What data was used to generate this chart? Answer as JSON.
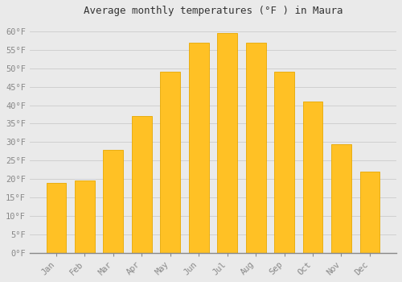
{
  "title": "Average monthly temperatures (°F ) in Maura",
  "months": [
    "Jan",
    "Feb",
    "Mar",
    "Apr",
    "May",
    "Jun",
    "Jul",
    "Aug",
    "Sep",
    "Oct",
    "Nov",
    "Dec"
  ],
  "values": [
    19,
    19.5,
    28,
    37,
    49,
    57,
    59.5,
    57,
    49,
    41,
    29.5,
    22
  ],
  "bar_color": "#FFC125",
  "bar_edge_color": "#E8A800",
  "background_color": "#EAEAEA",
  "plot_bg_color": "#EAEAEA",
  "grid_color": "#CCCCCC",
  "tick_color": "#888888",
  "title_color": "#333333",
  "ylim": [
    0,
    63
  ],
  "yticks": [
    0,
    5,
    10,
    15,
    20,
    25,
    30,
    35,
    40,
    45,
    50,
    55,
    60
  ],
  "ytick_labels": [
    "0°F",
    "5°F",
    "10°F",
    "15°F",
    "20°F",
    "25°F",
    "30°F",
    "35°F",
    "40°F",
    "45°F",
    "50°F",
    "55°F",
    "60°F"
  ],
  "title_fontsize": 9,
  "tick_fontsize": 7.5
}
